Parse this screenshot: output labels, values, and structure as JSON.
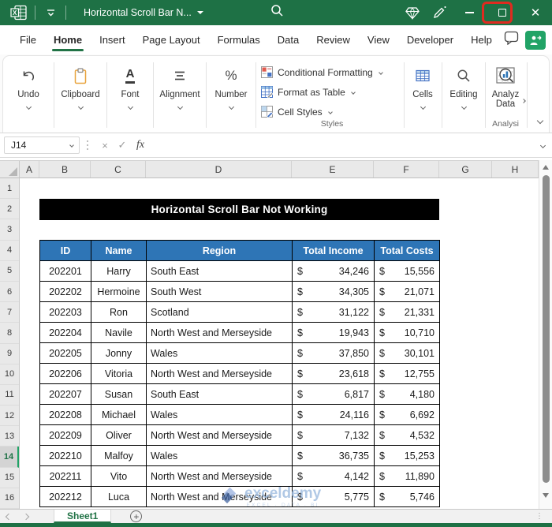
{
  "titlebar": {
    "title": "Horizontal Scroll Bar N..."
  },
  "menubar": {
    "tabs": [
      "File",
      "Home",
      "Insert",
      "Page Layout",
      "Formulas",
      "Data",
      "Review",
      "View",
      "Developer",
      "Help"
    ],
    "active_tab": "Home"
  },
  "ribbon": {
    "undo": {
      "label": "Undo"
    },
    "clipboard": {
      "label": "Clipboard"
    },
    "font": {
      "label": "Font",
      "icon_letter": "A"
    },
    "alignment": {
      "label": "Alignment"
    },
    "number": {
      "label": "Number",
      "icon_glyph": "%"
    },
    "styles": {
      "items": [
        "Conditional Formatting",
        "Format as Table",
        "Cell Styles"
      ],
      "group_label": "Styles"
    },
    "cells": {
      "label": "Cells"
    },
    "editing": {
      "label": "Editing"
    },
    "analyze": {
      "line1": "Analyz",
      "line2": "Data",
      "group_label": "Analysi"
    }
  },
  "formula_bar": {
    "name_box_value": "J14",
    "fx_label": "fx"
  },
  "sheet": {
    "column_letters": [
      "A",
      "B",
      "C",
      "D",
      "E",
      "F",
      "G",
      "H"
    ],
    "row_numbers": [
      "1",
      "2",
      "3",
      "4",
      "5",
      "6",
      "7",
      "8",
      "9",
      "10",
      "11",
      "12",
      "13",
      "14",
      "15",
      "16"
    ],
    "active_row": "14",
    "banner_title": "Horizontal Scroll Bar Not Working"
  },
  "table": {
    "headers": [
      "ID",
      "Name",
      "Region",
      "Total Income",
      "Total Costs"
    ],
    "currency_symbol": "$",
    "header_bg": "#2E75B6",
    "rows": [
      {
        "id": "202201",
        "name": "Harry",
        "region": "South East",
        "income": "34,246",
        "costs": "15,556"
      },
      {
        "id": "202202",
        "name": "Hermoine",
        "region": "South West",
        "income": "34,305",
        "costs": "21,071"
      },
      {
        "id": "202203",
        "name": "Ron",
        "region": "Scotland",
        "income": "31,122",
        "costs": "21,331"
      },
      {
        "id": "202204",
        "name": "Navile",
        "region": "North West and Merseyside",
        "income": "19,943",
        "costs": "10,710"
      },
      {
        "id": "202205",
        "name": "Jonny",
        "region": "Wales",
        "income": "37,850",
        "costs": "30,101"
      },
      {
        "id": "202206",
        "name": "Vitoria",
        "region": "North West and Merseyside",
        "income": "23,618",
        "costs": "12,755"
      },
      {
        "id": "202207",
        "name": "Susan",
        "region": "South East",
        "income": "6,817",
        "costs": "4,180"
      },
      {
        "id": "202208",
        "name": "Michael",
        "region": "Wales",
        "income": "24,116",
        "costs": "6,692"
      },
      {
        "id": "202209",
        "name": "Oliver",
        "region": "North West and Merseyside",
        "income": "7,132",
        "costs": "4,532"
      },
      {
        "id": "202210",
        "name": "Malfoy",
        "region": "Wales",
        "income": "36,735",
        "costs": "15,253"
      },
      {
        "id": "202211",
        "name": "Vito",
        "region": "North West and Merseyside",
        "income": "4,142",
        "costs": "11,890"
      },
      {
        "id": "202212",
        "name": "Luca",
        "region": "North West and Merseyside",
        "income": "5,775",
        "costs": "5,746"
      }
    ]
  },
  "tabbar": {
    "sheet_tab": "Sheet1"
  },
  "watermark": {
    "brand": "exceldemy",
    "tagline": "EXCEL · DATA · BI"
  },
  "colors": {
    "titlebar_green": "#1E7145",
    "accent_green": "#217346",
    "table_header_blue": "#2E75B6",
    "banner_black": "#000000",
    "highlight_red": "#E02B20"
  }
}
